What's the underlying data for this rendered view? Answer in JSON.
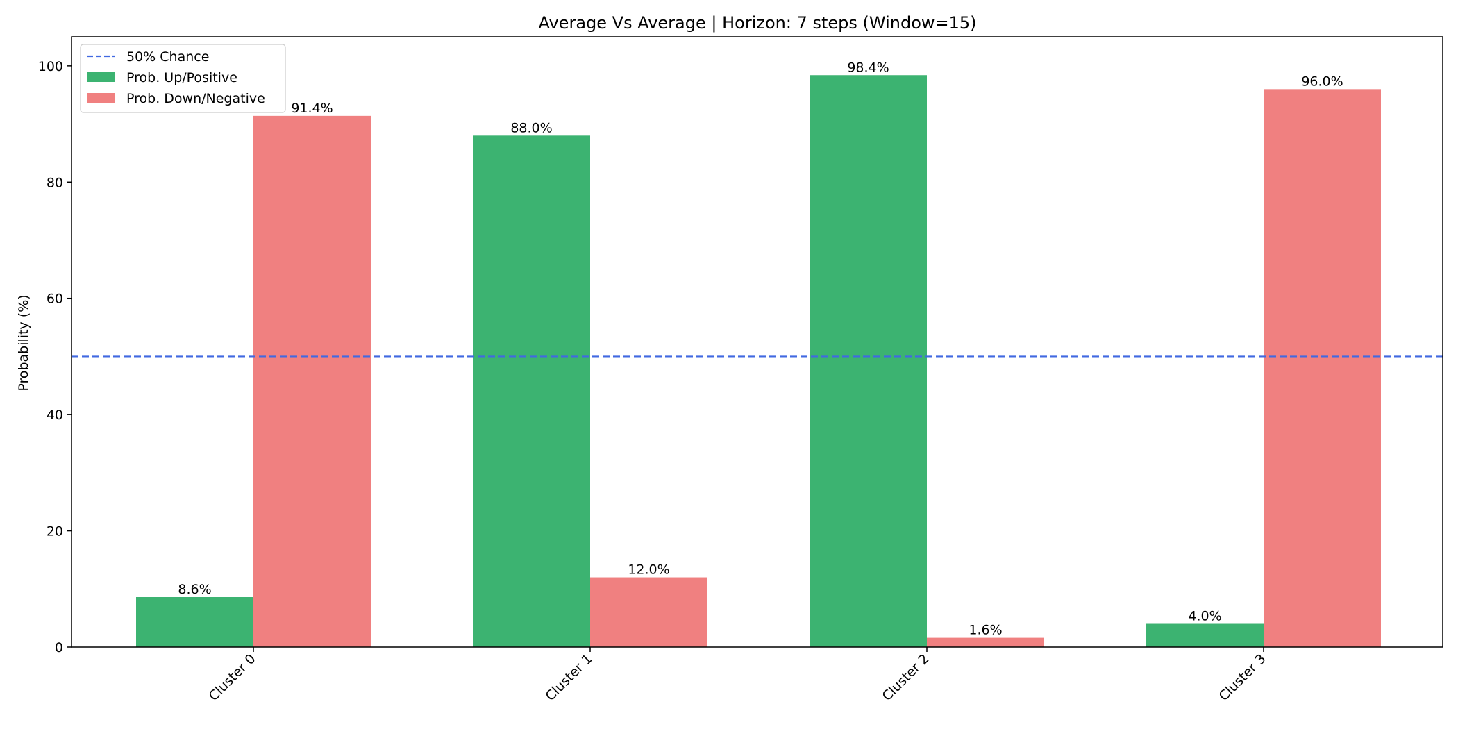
{
  "chart_data": {
    "type": "bar",
    "title": "Average Vs Average | Horizon: 7 steps (Window=15)",
    "xlabel": "",
    "ylabel": "Probability (%)",
    "categories": [
      "Cluster 0",
      "Cluster 1",
      "Cluster 2",
      "Cluster 3"
    ],
    "series": [
      {
        "name": "Prob. Up/Positive",
        "color": "#3cb371",
        "values": [
          8.6,
          88.0,
          98.4,
          4.0
        ],
        "labels": [
          "8.6%",
          "88.0%",
          "98.4%",
          "4.0%"
        ]
      },
      {
        "name": "Prob. Down/Negative",
        "color": "#f08080",
        "values": [
          91.4,
          12.0,
          1.6,
          96.0
        ],
        "labels": [
          "91.4%",
          "12.0%",
          "1.6%",
          "96.0%"
        ]
      }
    ],
    "reference_line": {
      "name": "50% Chance",
      "value": 50,
      "color": "#4169e1",
      "style": "dashed"
    },
    "ylim": [
      0,
      105
    ],
    "yticks": [
      0,
      20,
      40,
      60,
      80,
      100
    ],
    "grid": false,
    "legend_position": "top-left"
  }
}
